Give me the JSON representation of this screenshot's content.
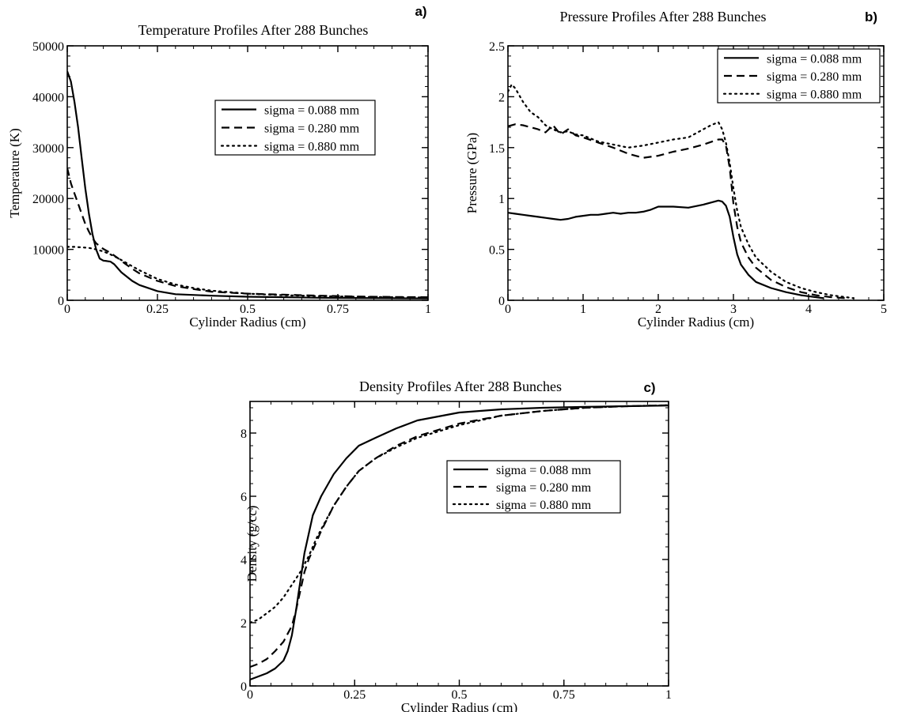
{
  "chart_data": [
    {
      "type": "line",
      "panel_label": "a)",
      "title": "Temperature Profiles After 288 Bunches",
      "xlabel": "Cylinder Radius (cm)",
      "ylabel": "Temperature (K)",
      "xlim": [
        0,
        1
      ],
      "ylim": [
        0,
        50000
      ],
      "xticks": [
        0,
        0.25,
        0.5,
        0.75,
        1
      ],
      "xtick_labels": [
        "0",
        "0.25",
        "0.5",
        "0.75",
        "1"
      ],
      "yticks": [
        0,
        10000,
        20000,
        30000,
        40000,
        50000
      ],
      "ytick_labels": [
        "0",
        "10000",
        "20000",
        "30000",
        "40000",
        "50000"
      ],
      "grid": false,
      "legend_position": "upper-right-inside",
      "series": [
        {
          "name": "sigma = 0.088 mm",
          "style": "solid",
          "x": [
            0,
            0.01,
            0.02,
            0.03,
            0.04,
            0.05,
            0.06,
            0.07,
            0.08,
            0.09,
            0.1,
            0.11,
            0.12,
            0.13,
            0.15,
            0.18,
            0.2,
            0.25,
            0.3,
            0.4,
            0.5,
            0.6,
            0.7,
            0.8,
            0.9,
            1.0
          ],
          "y": [
            45000,
            43000,
            39000,
            34000,
            28000,
            22000,
            17000,
            13000,
            10000,
            8200,
            7800,
            7700,
            7600,
            7100,
            5500,
            3800,
            3000,
            1800,
            1200,
            900,
            700,
            600,
            500,
            450,
            400,
            350
          ]
        },
        {
          "name": "sigma = 0.280 mm",
          "style": "dashed",
          "x": [
            0,
            0.01,
            0.02,
            0.03,
            0.04,
            0.05,
            0.06,
            0.07,
            0.08,
            0.1,
            0.12,
            0.14,
            0.16,
            0.18,
            0.2,
            0.25,
            0.3,
            0.35,
            0.4,
            0.5,
            0.6,
            0.7,
            0.8,
            0.9,
            1.0
          ],
          "y": [
            26000,
            23000,
            21000,
            19000,
            17000,
            15000,
            13500,
            12200,
            11200,
            10100,
            9300,
            8300,
            7200,
            6200,
            5300,
            3800,
            2800,
            2200,
            1700,
            1300,
            1100,
            900,
            750,
            650,
            600
          ]
        },
        {
          "name": "sigma = 0.880 mm",
          "style": "dotted",
          "x": [
            0,
            0.02,
            0.04,
            0.06,
            0.08,
            0.1,
            0.12,
            0.14,
            0.16,
            0.18,
            0.2,
            0.25,
            0.3,
            0.35,
            0.4,
            0.5,
            0.6,
            0.7,
            0.8,
            0.9,
            1.0
          ],
          "y": [
            10500,
            10500,
            10400,
            10300,
            10000,
            9600,
            9000,
            8300,
            7500,
            6700,
            5900,
            4200,
            3100,
            2400,
            1900,
            1300,
            1000,
            800,
            700,
            600,
            550
          ]
        }
      ]
    },
    {
      "type": "line",
      "panel_label": "b)",
      "title": "Pressure  Profiles After 288 Bunches",
      "xlabel": "Cylinder Radius (cm)",
      "ylabel": "Pressure (GPa)",
      "xlim": [
        0,
        5
      ],
      "ylim": [
        0,
        2.5
      ],
      "xticks": [
        0,
        1,
        2,
        3,
        4,
        5
      ],
      "xtick_labels": [
        "0",
        "1",
        "2",
        "3",
        "4",
        "5"
      ],
      "yticks": [
        0,
        0.5,
        1,
        1.5,
        2,
        2.5
      ],
      "ytick_labels": [
        "0",
        "0.5",
        "1",
        "1.5",
        "2",
        "2.5"
      ],
      "grid": false,
      "legend_position": "top-right-inside",
      "series": [
        {
          "name": "sigma = 0.088 mm",
          "style": "solid",
          "x": [
            0,
            0.1,
            0.2,
            0.3,
            0.4,
            0.5,
            0.6,
            0.7,
            0.8,
            0.9,
            1.0,
            1.1,
            1.2,
            1.3,
            1.4,
            1.5,
            1.6,
            1.7,
            1.8,
            1.9,
            2.0,
            2.2,
            2.4,
            2.6,
            2.8,
            2.85,
            2.9,
            2.95,
            3.0,
            3.05,
            3.1,
            3.2,
            3.3,
            3.5,
            3.7,
            3.9,
            4.1,
            4.2
          ],
          "y": [
            0.86,
            0.85,
            0.84,
            0.83,
            0.82,
            0.81,
            0.8,
            0.79,
            0.8,
            0.82,
            0.83,
            0.84,
            0.84,
            0.85,
            0.86,
            0.85,
            0.86,
            0.86,
            0.87,
            0.89,
            0.92,
            0.92,
            0.91,
            0.94,
            0.98,
            0.97,
            0.93,
            0.82,
            0.62,
            0.45,
            0.35,
            0.25,
            0.18,
            0.12,
            0.08,
            0.05,
            0.03,
            0.02
          ]
        },
        {
          "name": "sigma = 0.280 mm",
          "style": "dashed",
          "x": [
            0,
            0.1,
            0.2,
            0.3,
            0.4,
            0.5,
            0.6,
            0.7,
            0.8,
            0.9,
            1.0,
            1.2,
            1.4,
            1.6,
            1.8,
            2.0,
            2.2,
            2.4,
            2.6,
            2.8,
            2.85,
            2.9,
            2.95,
            3.0,
            3.05,
            3.1,
            3.2,
            3.3,
            3.5,
            3.7,
            3.9,
            4.1,
            4.3,
            4.5
          ],
          "y": [
            1.71,
            1.73,
            1.72,
            1.7,
            1.68,
            1.65,
            1.72,
            1.63,
            1.68,
            1.62,
            1.6,
            1.55,
            1.5,
            1.44,
            1.4,
            1.42,
            1.46,
            1.49,
            1.53,
            1.58,
            1.58,
            1.52,
            1.3,
            0.95,
            0.72,
            0.57,
            0.42,
            0.32,
            0.2,
            0.13,
            0.08,
            0.05,
            0.03,
            0.02
          ]
        },
        {
          "name": "sigma = 0.880 mm",
          "style": "dotted",
          "x": [
            0,
            0.05,
            0.1,
            0.2,
            0.3,
            0.4,
            0.5,
            0.6,
            0.7,
            0.8,
            0.9,
            1.0,
            1.2,
            1.4,
            1.6,
            1.8,
            2.0,
            2.2,
            2.4,
            2.6,
            2.7,
            2.8,
            2.85,
            2.9,
            2.95,
            3.0,
            3.05,
            3.1,
            3.2,
            3.3,
            3.5,
            3.7,
            3.9,
            4.1,
            4.3,
            4.5,
            4.6
          ],
          "y": [
            2.05,
            2.12,
            2.08,
            1.95,
            1.85,
            1.8,
            1.72,
            1.68,
            1.65,
            1.66,
            1.63,
            1.62,
            1.56,
            1.53,
            1.5,
            1.52,
            1.55,
            1.58,
            1.6,
            1.68,
            1.72,
            1.75,
            1.68,
            1.55,
            1.35,
            1.1,
            0.88,
            0.72,
            0.55,
            0.42,
            0.28,
            0.18,
            0.12,
            0.08,
            0.05,
            0.03,
            0.02
          ]
        }
      ]
    },
    {
      "type": "line",
      "panel_label": "c)",
      "title": "Density Profiles After 288 Bunches",
      "xlabel": "Cylinder Radius (cm)",
      "ylabel": "Density (g/cc)",
      "xlim": [
        0,
        1
      ],
      "ylim": [
        0,
        9
      ],
      "xticks": [
        0,
        0.25,
        0.5,
        0.75,
        1
      ],
      "xtick_labels": [
        "0",
        "0.25",
        "0.5",
        "0.75",
        "1"
      ],
      "yticks": [
        0,
        2,
        4,
        6,
        8
      ],
      "ytick_labels": [
        "0",
        "2",
        "4",
        "6",
        "8"
      ],
      "grid": false,
      "legend_position": "center-right-inside",
      "series": [
        {
          "name": "sigma = 0.088 mm",
          "style": "solid",
          "x": [
            0,
            0.02,
            0.04,
            0.06,
            0.08,
            0.09,
            0.1,
            0.11,
            0.12,
            0.13,
            0.14,
            0.15,
            0.17,
            0.2,
            0.23,
            0.26,
            0.3,
            0.35,
            0.4,
            0.5,
            0.6,
            0.7,
            0.8,
            0.9,
            1.0
          ],
          "y": [
            0.2,
            0.3,
            0.4,
            0.55,
            0.8,
            1.1,
            1.6,
            2.4,
            3.3,
            4.2,
            4.8,
            5.4,
            6.0,
            6.7,
            7.2,
            7.6,
            7.85,
            8.15,
            8.4,
            8.65,
            8.75,
            8.8,
            8.83,
            8.85,
            8.87
          ]
        },
        {
          "name": "sigma = 0.280 mm",
          "style": "dashed",
          "x": [
            0,
            0.02,
            0.04,
            0.06,
            0.08,
            0.1,
            0.11,
            0.12,
            0.13,
            0.14,
            0.15,
            0.17,
            0.2,
            0.23,
            0.26,
            0.3,
            0.35,
            0.4,
            0.5,
            0.6,
            0.7,
            0.8,
            0.9,
            1.0
          ],
          "y": [
            0.6,
            0.7,
            0.85,
            1.1,
            1.4,
            1.9,
            2.4,
            3.0,
            3.6,
            4.0,
            4.3,
            4.9,
            5.7,
            6.3,
            6.8,
            7.2,
            7.6,
            7.9,
            8.3,
            8.55,
            8.7,
            8.8,
            8.85,
            8.88
          ]
        },
        {
          "name": "sigma = 0.880 mm",
          "style": "dotted",
          "x": [
            0,
            0.02,
            0.04,
            0.06,
            0.08,
            0.1,
            0.12,
            0.14,
            0.16,
            0.18,
            0.2,
            0.23,
            0.26,
            0.3,
            0.35,
            0.4,
            0.5,
            0.6,
            0.7,
            0.8,
            0.9,
            1.0
          ],
          "y": [
            2.0,
            2.1,
            2.3,
            2.5,
            2.8,
            3.2,
            3.6,
            4.1,
            4.7,
            5.2,
            5.7,
            6.3,
            6.8,
            7.2,
            7.55,
            7.85,
            8.25,
            8.55,
            8.7,
            8.8,
            8.85,
            8.88
          ]
        }
      ]
    }
  ]
}
